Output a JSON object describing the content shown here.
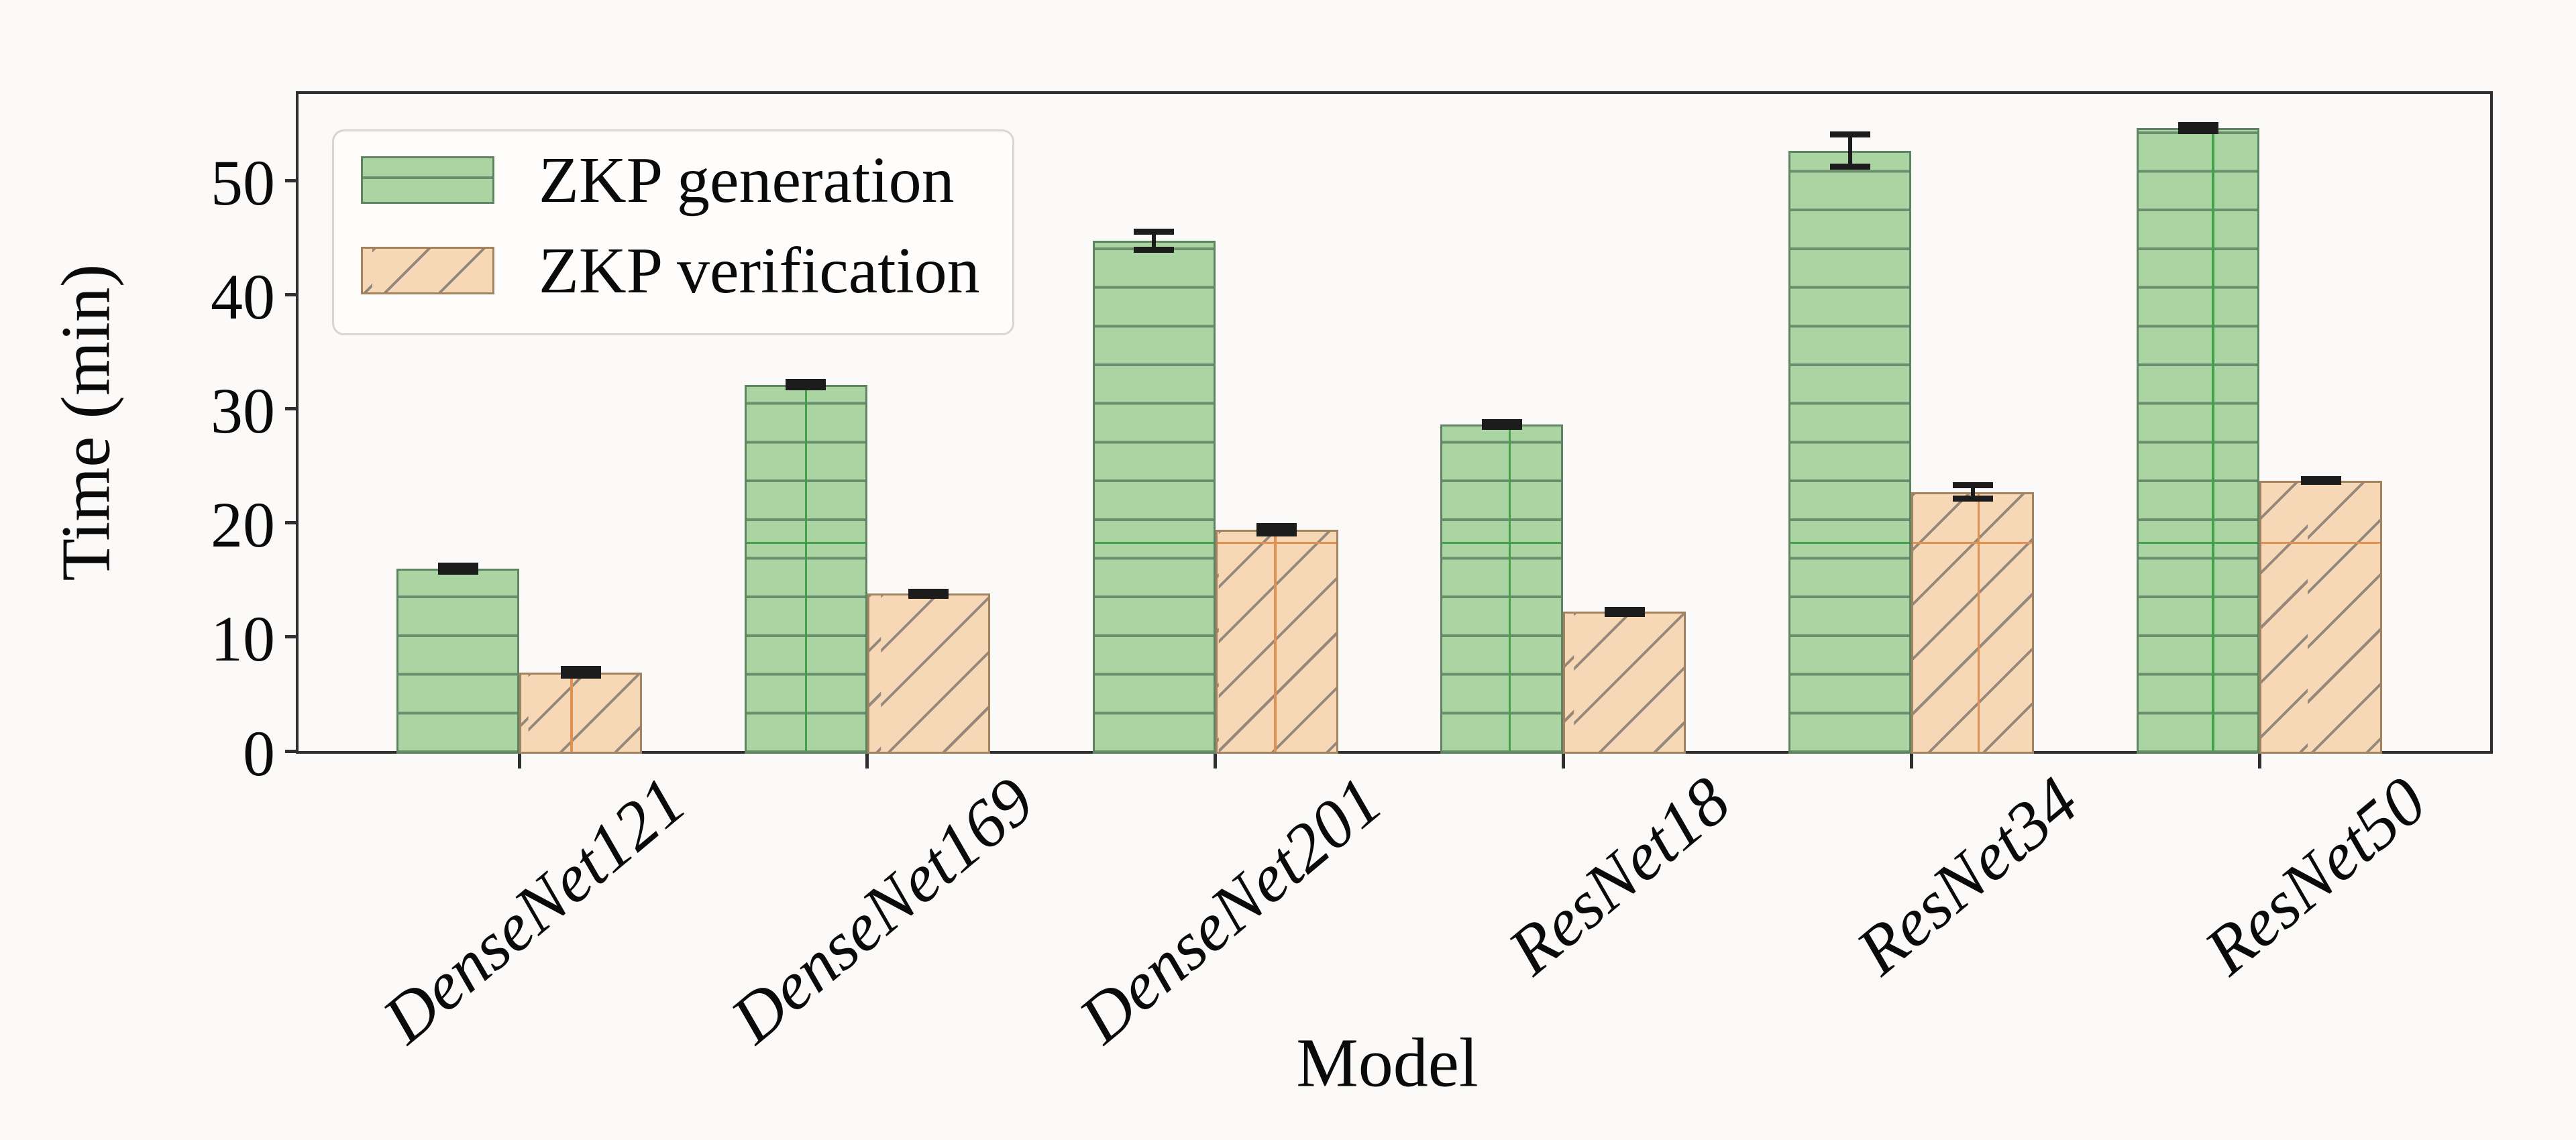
{
  "chart_data": {
    "type": "bar",
    "categories": [
      "DenseNet121",
      "DenseNet169",
      "DenseNet201",
      "ResNet18",
      "ResNet34",
      "ResNet50"
    ],
    "series": [
      {
        "name": "ZKP generation",
        "values": [
          16.0,
          32.1,
          44.7,
          28.6,
          52.6,
          54.6
        ],
        "errors": [
          0.3,
          0.25,
          0.8,
          0.25,
          1.4,
          0.3
        ],
        "fill_color": "#abd4a3",
        "edge_color": "#5f8462",
        "hatch_color": "#6a8e6e",
        "accent_color": "#44a04a",
        "hatch": "horizontal"
      },
      {
        "name": "ZKP verification",
        "values": [
          6.9,
          13.8,
          19.4,
          12.2,
          22.7,
          23.7
        ],
        "errors": [
          0.3,
          0.2,
          0.35,
          0.2,
          0.6,
          0.15
        ],
        "fill_color": "#f6d8b6",
        "edge_color": "#a3835f",
        "hatch_color": "#95877a",
        "accent_color": "#e09050",
        "hatch": "diagonal"
      }
    ],
    "xlabel": "Model",
    "ylabel": "Time (min)",
    "yticks": [
      0,
      10,
      20,
      30,
      40,
      50
    ],
    "ylim": [
      0,
      57.6
    ],
    "errorbar_color": "#1c1c1c",
    "legend_position": "upper left",
    "grid": false
  }
}
